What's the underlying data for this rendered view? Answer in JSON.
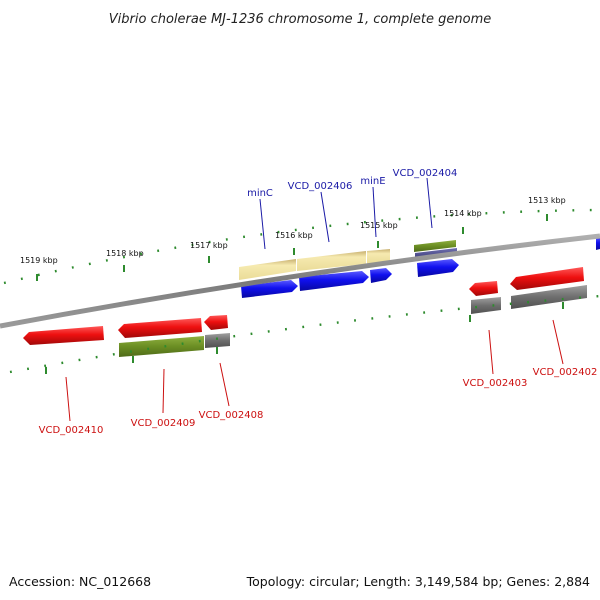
{
  "title": "Vibrio cholerae MJ-1236 chromosome 1, complete genome",
  "footer": {
    "accession": "Accession: NC_012668",
    "summary": "Topology: circular; Length: 3,149,584 bp; Genes: 2,884"
  },
  "scale": {
    "unit": "kbp",
    "ticks": [
      "1519 kbp",
      "1518 kbp",
      "1517 kbp",
      "1516 kbp",
      "1515 kbp",
      "1514 kbp",
      "1513 kbp"
    ]
  },
  "labels": {
    "forward": [
      "minC",
      "VCD_002406",
      "minE",
      "VCD_002404"
    ],
    "reverse": [
      "VCD_002410",
      "VCD_002409",
      "VCD_002408",
      "VCD_002403",
      "VCD_002402"
    ]
  },
  "colors": {
    "backbone": "#8a8a8a",
    "cds": "#1010ee",
    "cds_reverse": "#ee1010",
    "gene_plain": "#f2e6a6",
    "gene_green": "#6b8e23",
    "gene_grey": "#707070",
    "gene_purple": "#4a4a8a",
    "tick": "#2e8b2e",
    "label_forward": "#1a1aa6",
    "label_reverse": "#cc1010"
  }
}
